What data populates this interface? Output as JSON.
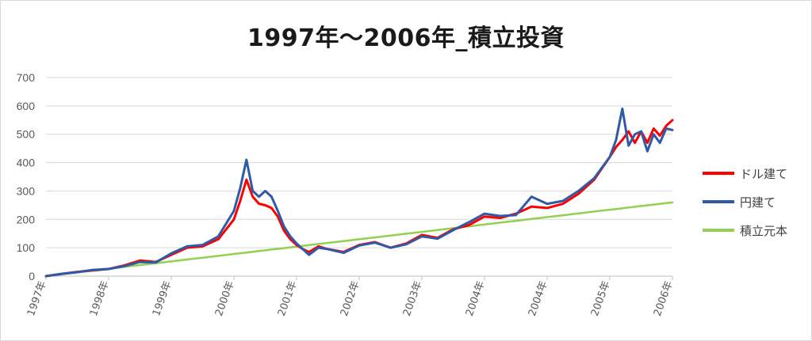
{
  "chart_data": {
    "type": "line",
    "title": "1997年～2006年_積立投資",
    "xlabel": "",
    "ylabel": "",
    "ylim": [
      0,
      700
    ],
    "yticks": [
      0,
      100,
      200,
      300,
      400,
      500,
      600,
      700
    ],
    "grid": true,
    "legend_position": "right",
    "x_tick_labels": [
      "1997年",
      "1998年",
      "1999年",
      "2000年",
      "2001年",
      "2002年",
      "2003年",
      "2004年",
      "2004年",
      "2005年",
      "2006年"
    ],
    "x": [
      0,
      0.25,
      0.5,
      0.75,
      1,
      1.25,
      1.5,
      1.75,
      2,
      2.25,
      2.5,
      2.75,
      3,
      3.1,
      3.2,
      3.3,
      3.4,
      3.5,
      3.6,
      3.7,
      3.8,
      3.9,
      4,
      4.1,
      4.2,
      4.35,
      4.5,
      4.75,
      5,
      5.25,
      5.5,
      5.75,
      6,
      6.25,
      6.5,
      6.75,
      7,
      7.25,
      7.5,
      7.75,
      8,
      8.25,
      8.5,
      8.75,
      9,
      9.1,
      9.2,
      9.3,
      9.4,
      9.5,
      9.6,
      9.7,
      9.8,
      9.9,
      10
    ],
    "series": [
      {
        "name": "ドル建て",
        "color": "#ff0000",
        "values": [
          0,
          8,
          15,
          20,
          25,
          38,
          55,
          50,
          75,
          100,
          105,
          130,
          200,
          265,
          340,
          280,
          255,
          250,
          240,
          210,
          160,
          130,
          110,
          95,
          85,
          105,
          95,
          85,
          110,
          120,
          100,
          115,
          145,
          135,
          165,
          180,
          210,
          205,
          220,
          245,
          240,
          255,
          290,
          340,
          420,
          455,
          480,
          510,
          470,
          510,
          470,
          520,
          495,
          530,
          550
        ]
      },
      {
        "name": "円建て",
        "color": "#2e5aa8",
        "values": [
          0,
          8,
          14,
          22,
          25,
          35,
          50,
          48,
          80,
          105,
          110,
          140,
          230,
          310,
          410,
          300,
          280,
          300,
          280,
          230,
          175,
          140,
          115,
          95,
          75,
          100,
          95,
          82,
          108,
          118,
          100,
          112,
          140,
          132,
          162,
          190,
          220,
          212,
          215,
          280,
          255,
          265,
          300,
          345,
          420,
          480,
          590,
          460,
          500,
          510,
          440,
          500,
          470,
          520,
          515
        ]
      },
      {
        "name": "積立元本",
        "color": "#92d050",
        "values": [
          0,
          6.5,
          13,
          19.5,
          26,
          32.5,
          39,
          45.5,
          52,
          58.5,
          65,
          71.5,
          78,
          80.6,
          83.2,
          85.8,
          88.4,
          91,
          93.6,
          96.2,
          98.8,
          101.4,
          104,
          106.6,
          109.2,
          113.1,
          117,
          123.5,
          130,
          136.5,
          143,
          149.5,
          156,
          162.5,
          169,
          175.5,
          182,
          188.5,
          195,
          201.5,
          208,
          214.5,
          221,
          227.5,
          234,
          236.6,
          239.2,
          241.8,
          244.4,
          247,
          249.6,
          252.2,
          254.8,
          257.4,
          260
        ]
      }
    ]
  }
}
